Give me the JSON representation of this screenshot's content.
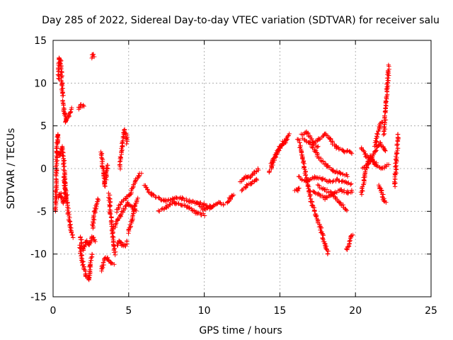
{
  "chart_data": {
    "type": "scatter",
    "title": "Day 285 of 2022, Sidereal Day-to-day VTEC variation (SDTVAR) for receiver salu",
    "xlabel": "GPS time / hours",
    "ylabel": "SDTVAR / TECUs",
    "xlim": [
      0,
      25
    ],
    "ylim": [
      -15,
      15
    ],
    "xticks": [
      0,
      5,
      10,
      15,
      20,
      25
    ],
    "yticks": [
      -15,
      -10,
      -5,
      0,
      5,
      10,
      15
    ],
    "grid": true,
    "marker": "+",
    "marker_color": "#ff0000",
    "segments": [
      {
        "name": "seg-01",
        "x0": 0.15,
        "x1": 0.35,
        "points": [
          [
            0.15,
            -5.0
          ],
          [
            0.2,
            -2.0
          ],
          [
            0.25,
            2.0
          ],
          [
            0.3,
            4.0
          ],
          [
            0.35,
            3.0
          ]
        ]
      },
      {
        "name": "seg-02",
        "x0": 0.35,
        "x1": 0.65,
        "points": [
          [
            0.35,
            10.5
          ],
          [
            0.42,
            13.0
          ],
          [
            0.5,
            12.5
          ],
          [
            0.58,
            10.0
          ],
          [
            0.65,
            8.5
          ]
        ]
      },
      {
        "name": "seg-03",
        "x0": 0.3,
        "x1": 0.8,
        "points": [
          [
            0.3,
            2.0
          ],
          [
            0.45,
            1.5
          ],
          [
            0.6,
            2.5
          ],
          [
            0.7,
            1.0
          ],
          [
            0.8,
            -3.0
          ]
        ]
      },
      {
        "name": "seg-04",
        "x0": 0.3,
        "x1": 0.9,
        "points": [
          [
            0.3,
            -3.5
          ],
          [
            0.5,
            -3.0
          ],
          [
            0.7,
            -4.0
          ],
          [
            0.9,
            -3.0
          ]
        ]
      },
      {
        "name": "seg-05",
        "x0": 0.65,
        "x1": 1.2,
        "points": [
          [
            0.65,
            8.0
          ],
          [
            0.75,
            6.5
          ],
          [
            0.85,
            5.5
          ],
          [
            1.0,
            6.0
          ],
          [
            1.2,
            7.0
          ]
        ]
      },
      {
        "name": "seg-06",
        "x0": 0.7,
        "x1": 1.3,
        "points": [
          [
            0.7,
            -1.0
          ],
          [
            0.85,
            -3.0
          ],
          [
            1.0,
            -5.0
          ],
          [
            1.15,
            -7.0
          ],
          [
            1.3,
            -8.0
          ]
        ]
      },
      {
        "name": "seg-07",
        "x0": 1.7,
        "x1": 2.0,
        "points": [
          [
            1.7,
            7.0
          ],
          [
            1.85,
            7.5
          ],
          [
            2.0,
            7.2
          ]
        ]
      },
      {
        "name": "seg-08",
        "x0": 2.55,
        "x1": 2.7,
        "points": [
          [
            2.55,
            13.0
          ],
          [
            2.62,
            13.4
          ],
          [
            2.7,
            13.2
          ]
        ]
      },
      {
        "name": "seg-09",
        "x0": 1.75,
        "x1": 2.6,
        "points": [
          [
            1.75,
            -9.0
          ],
          [
            1.95,
            -11.0
          ],
          [
            2.15,
            -12.5
          ],
          [
            2.35,
            -13.0
          ],
          [
            2.45,
            -11.5
          ],
          [
            2.6,
            -10.0
          ]
        ]
      },
      {
        "name": "seg-10",
        "x0": 1.8,
        "x1": 2.8,
        "points": [
          [
            1.8,
            -8.0
          ],
          [
            2.0,
            -9.5
          ],
          [
            2.2,
            -8.5
          ],
          [
            2.4,
            -9.0
          ],
          [
            2.6,
            -8.0
          ],
          [
            2.8,
            -8.5
          ]
        ]
      },
      {
        "name": "seg-11",
        "x0": 2.6,
        "x1": 3.0,
        "points": [
          [
            2.6,
            -7.0
          ],
          [
            2.75,
            -5.0
          ],
          [
            2.9,
            -4.0
          ],
          [
            3.0,
            -3.5
          ]
        ]
      },
      {
        "name": "seg-12",
        "x0": 3.2,
        "x1": 3.6,
        "points": [
          [
            3.2,
            2.0
          ],
          [
            3.3,
            0.0
          ],
          [
            3.4,
            -2.0
          ],
          [
            3.5,
            -1.0
          ],
          [
            3.6,
            0.5
          ]
        ]
      },
      {
        "name": "seg-13",
        "x0": 3.2,
        "x1": 4.0,
        "points": [
          [
            3.2,
            -12.0
          ],
          [
            3.4,
            -10.5
          ],
          [
            3.6,
            -10.5
          ],
          [
            3.8,
            -11.0
          ],
          [
            4.0,
            -11.2
          ]
        ]
      },
      {
        "name": "seg-14",
        "x0": 3.7,
        "x1": 4.1,
        "points": [
          [
            3.7,
            -3.0
          ],
          [
            3.8,
            -5.0
          ],
          [
            3.9,
            -7.0
          ],
          [
            4.0,
            -9.0
          ],
          [
            4.1,
            -10.0
          ]
        ]
      },
      {
        "name": "seg-15",
        "x0": 4.2,
        "x1": 4.9,
        "points": [
          [
            4.2,
            -9.0
          ],
          [
            4.4,
            -8.5
          ],
          [
            4.6,
            -9.0
          ],
          [
            4.8,
            -9.0
          ],
          [
            4.9,
            -8.5
          ]
        ]
      },
      {
        "name": "seg-16",
        "x0": 4.4,
        "x1": 4.9,
        "points": [
          [
            4.4,
            0.0
          ],
          [
            4.55,
            2.5
          ],
          [
            4.7,
            4.5
          ],
          [
            4.85,
            4.0
          ],
          [
            4.9,
            3.0
          ]
        ]
      },
      {
        "name": "seg-17",
        "x0": 4.0,
        "x1": 5.5,
        "points": [
          [
            4.0,
            -7.0
          ],
          [
            4.3,
            -6.0
          ],
          [
            4.6,
            -5.0
          ],
          [
            4.9,
            -4.0
          ],
          [
            5.2,
            -4.5
          ],
          [
            5.5,
            -5.0
          ]
        ]
      },
      {
        "name": "seg-18",
        "x0": 4.2,
        "x1": 5.8,
        "points": [
          [
            4.2,
            -5.0
          ],
          [
            4.5,
            -4.0
          ],
          [
            4.8,
            -3.5
          ],
          [
            5.1,
            -3.0
          ],
          [
            5.4,
            -1.5
          ],
          [
            5.8,
            -0.5
          ]
        ]
      },
      {
        "name": "seg-19",
        "x0": 5.0,
        "x1": 5.6,
        "points": [
          [
            5.0,
            -7.5
          ],
          [
            5.2,
            -6.0
          ],
          [
            5.4,
            -4.5
          ],
          [
            5.6,
            -3.5
          ]
        ]
      },
      {
        "name": "seg-20",
        "x0": 6.0,
        "x1": 10.5,
        "points": [
          [
            6.0,
            -2.0
          ],
          [
            6.5,
            -3.0
          ],
          [
            7.0,
            -3.5
          ],
          [
            7.5,
            -3.8
          ],
          [
            8.0,
            -3.5
          ],
          [
            8.5,
            -3.5
          ],
          [
            9.0,
            -3.8
          ],
          [
            9.5,
            -4.0
          ],
          [
            10.0,
            -4.2
          ],
          [
            10.5,
            -4.5
          ]
        ]
      },
      {
        "name": "seg-21",
        "x0": 7.0,
        "x1": 10.0,
        "points": [
          [
            7.0,
            -5.0
          ],
          [
            7.5,
            -4.5
          ],
          [
            8.0,
            -4.0
          ],
          [
            8.5,
            -4.2
          ],
          [
            9.0,
            -4.6
          ],
          [
            9.5,
            -5.2
          ],
          [
            10.0,
            -5.4
          ]
        ]
      },
      {
        "name": "seg-22",
        "x0": 9.5,
        "x1": 11.3,
        "points": [
          [
            9.5,
            -4.0
          ],
          [
            10.0,
            -4.8
          ],
          [
            10.5,
            -4.5
          ],
          [
            11.0,
            -4.0
          ],
          [
            11.3,
            -4.2
          ]
        ]
      },
      {
        "name": "seg-23",
        "x0": 11.5,
        "x1": 11.9,
        "points": [
          [
            11.5,
            -4.0
          ],
          [
            11.7,
            -3.5
          ],
          [
            11.9,
            -3.0
          ]
        ]
      },
      {
        "name": "seg-24",
        "x0": 12.4,
        "x1": 13.6,
        "points": [
          [
            12.4,
            -1.5
          ],
          [
            12.7,
            -1.0
          ],
          [
            13.0,
            -1.0
          ],
          [
            13.3,
            -0.5
          ],
          [
            13.6,
            0.0
          ]
        ]
      },
      {
        "name": "seg-25",
        "x0": 12.5,
        "x1": 13.5,
        "points": [
          [
            12.5,
            -2.5
          ],
          [
            12.8,
            -2.0
          ],
          [
            13.1,
            -1.8
          ],
          [
            13.5,
            -1.2
          ]
        ]
      },
      {
        "name": "seg-26",
        "x0": 14.3,
        "x1": 15.6,
        "points": [
          [
            14.3,
            -0.5
          ],
          [
            14.6,
            1.0
          ],
          [
            14.9,
            2.0
          ],
          [
            15.2,
            3.0
          ],
          [
            15.6,
            4.0
          ]
        ]
      },
      {
        "name": "seg-27",
        "x0": 14.4,
        "x1": 15.5,
        "points": [
          [
            14.4,
            0.5
          ],
          [
            14.7,
            1.5
          ],
          [
            15.0,
            2.5
          ],
          [
            15.3,
            3.0
          ],
          [
            15.5,
            3.5
          ]
        ]
      },
      {
        "name": "seg-28",
        "x0": 16.2,
        "x1": 18.2,
        "points": [
          [
            16.2,
            3.5
          ],
          [
            16.5,
            1.5
          ],
          [
            16.8,
            -1.5
          ],
          [
            17.1,
            -4.0
          ],
          [
            17.4,
            -5.5
          ],
          [
            17.7,
            -7.0
          ],
          [
            18.0,
            -9.0
          ],
          [
            18.2,
            -10.0
          ]
        ]
      },
      {
        "name": "seg-29",
        "x0": 16.4,
        "x1": 17.5,
        "points": [
          [
            16.4,
            4.0
          ],
          [
            16.8,
            4.2
          ],
          [
            17.2,
            3.0
          ],
          [
            17.5,
            2.5
          ]
        ]
      },
      {
        "name": "seg-30",
        "x0": 16.5,
        "x1": 19.5,
        "points": [
          [
            16.5,
            3.5
          ],
          [
            17.0,
            3.0
          ],
          [
            17.5,
            1.5
          ],
          [
            18.0,
            0.5
          ],
          [
            18.5,
            -0.2
          ],
          [
            19.0,
            -0.5
          ],
          [
            19.5,
            -0.8
          ]
        ]
      },
      {
        "name": "seg-31",
        "x0": 17.2,
        "x1": 19.8,
        "points": [
          [
            17.2,
            3.0
          ],
          [
            17.6,
            3.5
          ],
          [
            18.0,
            4.0
          ],
          [
            18.3,
            3.5
          ],
          [
            18.7,
            2.5
          ],
          [
            19.2,
            2.0
          ],
          [
            19.5,
            2.0
          ],
          [
            19.8,
            1.8
          ]
        ]
      },
      {
        "name": "seg-32",
        "x0": 16.2,
        "x1": 19.7,
        "points": [
          [
            16.2,
            -1.0
          ],
          [
            16.8,
            -1.5
          ],
          [
            17.3,
            -1.0
          ],
          [
            17.8,
            -1.2
          ],
          [
            18.3,
            -1.5
          ],
          [
            18.8,
            -1.3
          ],
          [
            19.2,
            -1.5
          ],
          [
            19.7,
            -1.8
          ]
        ]
      },
      {
        "name": "seg-33",
        "x0": 16.0,
        "x1": 16.3,
        "points": [
          [
            16.0,
            -2.6
          ],
          [
            16.15,
            -2.5
          ],
          [
            16.3,
            -2.2
          ]
        ]
      },
      {
        "name": "seg-34",
        "x0": 17.0,
        "x1": 19.8,
        "points": [
          [
            17.0,
            -2.5
          ],
          [
            17.5,
            -3.0
          ],
          [
            18.0,
            -3.5
          ],
          [
            18.5,
            -3.0
          ],
          [
            19.0,
            -2.5
          ],
          [
            19.5,
            -2.8
          ],
          [
            19.8,
            -2.6
          ]
        ]
      },
      {
        "name": "seg-35",
        "x0": 17.5,
        "x1": 19.4,
        "points": [
          [
            17.5,
            -2.0
          ],
          [
            18.0,
            -2.5
          ],
          [
            18.5,
            -3.0
          ],
          [
            19.0,
            -4.0
          ],
          [
            19.4,
            -5.0
          ]
        ]
      },
      {
        "name": "seg-36",
        "x0": 19.4,
        "x1": 19.8,
        "points": [
          [
            19.4,
            -9.5
          ],
          [
            19.55,
            -9.0
          ],
          [
            19.7,
            -8.0
          ],
          [
            19.8,
            -7.7
          ]
        ]
      },
      {
        "name": "seg-37",
        "x0": 20.4,
        "x1": 21.3,
        "points": [
          [
            20.4,
            -3.0
          ],
          [
            20.6,
            -1.0
          ],
          [
            20.8,
            0.5
          ],
          [
            21.0,
            1.5
          ],
          [
            21.3,
            0.5
          ]
        ]
      },
      {
        "name": "seg-38",
        "x0": 20.4,
        "x1": 22.0,
        "points": [
          [
            20.4,
            2.5
          ],
          [
            20.7,
            1.5
          ],
          [
            21.0,
            1.0
          ],
          [
            21.3,
            2.0
          ],
          [
            21.6,
            3.0
          ],
          [
            22.0,
            2.0
          ]
        ]
      },
      {
        "name": "seg-39",
        "x0": 20.5,
        "x1": 22.2,
        "points": [
          [
            20.5,
            0.0
          ],
          [
            20.8,
            0.5
          ],
          [
            21.1,
            1.0
          ],
          [
            21.4,
            0.5
          ],
          [
            21.8,
            0.0
          ],
          [
            22.2,
            0.5
          ]
        ]
      },
      {
        "name": "seg-40",
        "x0": 21.3,
        "x1": 21.8,
        "points": [
          [
            21.3,
            2.5
          ],
          [
            21.45,
            4.0
          ],
          [
            21.6,
            5.0
          ],
          [
            21.8,
            5.5
          ]
        ]
      },
      {
        "name": "seg-41",
        "x0": 21.5,
        "x1": 22.0,
        "points": [
          [
            21.5,
            -2.0
          ],
          [
            21.7,
            -2.5
          ],
          [
            21.85,
            -3.5
          ],
          [
            22.0,
            -4.0
          ]
        ]
      },
      {
        "name": "seg-42",
        "x0": 21.9,
        "x1": 22.2,
        "points": [
          [
            21.9,
            4.0
          ],
          [
            22.0,
            7.0
          ],
          [
            22.1,
            9.5
          ],
          [
            22.2,
            12.0
          ]
        ]
      },
      {
        "name": "seg-43",
        "x0": 22.6,
        "x1": 22.85,
        "points": [
          [
            22.6,
            -2.0
          ],
          [
            22.7,
            1.0
          ],
          [
            22.8,
            3.5
          ],
          [
            22.85,
            4.0
          ]
        ]
      }
    ]
  }
}
